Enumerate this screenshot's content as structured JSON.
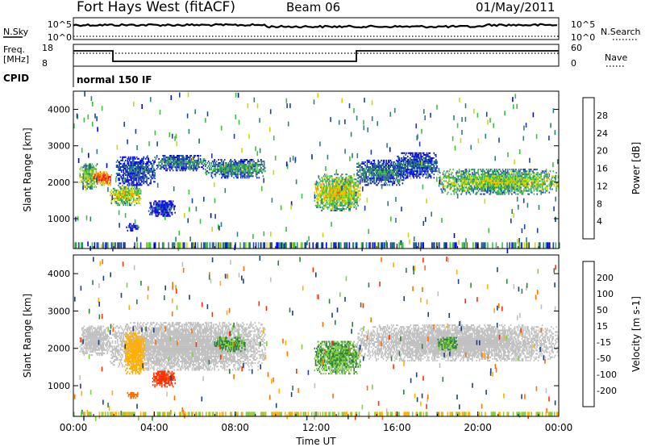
{
  "header": {
    "station": "Fort Hays West (fitACF)",
    "beam": "Beam 06",
    "date": "01/May/2011"
  },
  "status_panels": {
    "nsky_label": "N.Sky",
    "nsearch_label": "N.Search",
    "freq_label_1": "Freq.",
    "freq_label_2": "[MHz]",
    "nave_label": "Nave",
    "cpid_label": "CPID",
    "cpid_text": "normal 150 IF",
    "noise_ticks": [
      "10^5",
      "10^0"
    ],
    "freq_ticks": [
      "18",
      "8"
    ],
    "nave_ticks": [
      "60",
      "0"
    ]
  },
  "chart_data": [
    {
      "type": "heatmap",
      "name_of_panel": "power",
      "ylabel": "Slant Range [km]",
      "yticks": [
        "4000",
        "3000",
        "2000",
        "1000"
      ],
      "ylim": [
        180,
        4500
      ],
      "colorbar_label": "Power [dB]",
      "colorbar_ticks": [
        "28",
        "24",
        "20",
        "16",
        "12",
        "8",
        "4"
      ],
      "colors": [
        "#0000ff",
        "#1f3fa8",
        "#2f7f7f",
        "#3fbf3f",
        "#cfd800",
        "#ff9f00",
        "#ff4f00",
        "#ff0000"
      ],
      "range_min": 0,
      "range_max": 30,
      "clusters": [
        {
          "t0": 0.3,
          "t1": 1.2,
          "r0": 1800,
          "r1": 2500,
          "v": 16
        },
        {
          "t0": 1.0,
          "t1": 1.9,
          "r0": 1900,
          "r1": 2300,
          "v": 26
        },
        {
          "t0": 1.8,
          "t1": 3.3,
          "r0": 1350,
          "r1": 1900,
          "v": 18
        },
        {
          "t0": 2.1,
          "t1": 4.0,
          "r0": 1900,
          "r1": 2700,
          "v": 8
        },
        {
          "t0": 4.0,
          "t1": 6.5,
          "r0": 2300,
          "r1": 2750,
          "v": 10
        },
        {
          "t0": 6.5,
          "t1": 9.5,
          "r0": 2100,
          "r1": 2600,
          "v": 12
        },
        {
          "t0": 3.7,
          "t1": 5.0,
          "r0": 1050,
          "r1": 1500,
          "v": 6
        },
        {
          "t0": 2.6,
          "t1": 3.2,
          "r0": 650,
          "r1": 850,
          "v": 7
        },
        {
          "t0": 11.9,
          "t1": 14.2,
          "r0": 1200,
          "r1": 2200,
          "v": 18
        },
        {
          "t0": 14.0,
          "t1": 16.5,
          "r0": 1900,
          "r1": 2600,
          "v": 10
        },
        {
          "t0": 16.0,
          "t1": 18.0,
          "r0": 2100,
          "r1": 2800,
          "v": 8
        },
        {
          "t0": 18.0,
          "t1": 24.0,
          "r0": 1650,
          "r1": 2350,
          "v": 16
        }
      ],
      "ground_scatter_band": [
        180,
        350
      ]
    },
    {
      "type": "heatmap",
      "name_of_panel": "velocity",
      "ylabel": "Slant Range [km]",
      "yticks": [
        "4000",
        "3000",
        "2000",
        "1000"
      ],
      "ylim": [
        180,
        4500
      ],
      "colorbar_label": "Velocity [m s-1]",
      "colorbar_ticks": [
        "200",
        "100",
        "50",
        "15",
        "-15",
        "-50",
        "-100",
        "-200"
      ],
      "colors": [
        "#0000cc",
        "#1f3f7f",
        "#2f7f3f",
        "#7fcf3f",
        "#c0c0c0",
        "#ffaf00",
        "#ff6f00",
        "#ff2f00",
        "#ff0000"
      ],
      "clusters": [
        {
          "t0": 0.3,
          "t1": 1.8,
          "r0": 1800,
          "r1": 2600,
          "v": 0
        },
        {
          "t0": 1.8,
          "t1": 9.5,
          "r0": 1400,
          "r1": 2700,
          "v": 0
        },
        {
          "t0": 2.5,
          "t1": 3.5,
          "r0": 1300,
          "r1": 2400,
          "v": -40
        },
        {
          "t0": 7.0,
          "t1": 8.5,
          "r0": 1900,
          "r1": 2300,
          "v": 30
        },
        {
          "t0": 3.9,
          "t1": 5.0,
          "r0": 950,
          "r1": 1400,
          "v": -120
        },
        {
          "t0": 2.6,
          "t1": 3.2,
          "r0": 650,
          "r1": 800,
          "v": -80
        },
        {
          "t0": 11.9,
          "t1": 14.2,
          "r0": 1300,
          "r1": 2200,
          "v": 30
        },
        {
          "t0": 14.0,
          "t1": 24.0,
          "r0": 1650,
          "r1": 2600,
          "v": 0
        },
        {
          "t0": 18.0,
          "t1": 19.0,
          "r0": 1900,
          "r1": 2300,
          "v": 30
        }
      ],
      "ground_scatter_band": [
        180,
        300
      ]
    }
  ],
  "time_axis": {
    "ticks": [
      "00:00",
      "04:00",
      "08:00",
      "12:00",
      "16:00",
      "20:00",
      "00:00"
    ],
    "label": "Time UT",
    "start_hour": 0,
    "end_hour": 24
  },
  "colors": {
    "frame": "#000000",
    "background": "#ffffff"
  }
}
